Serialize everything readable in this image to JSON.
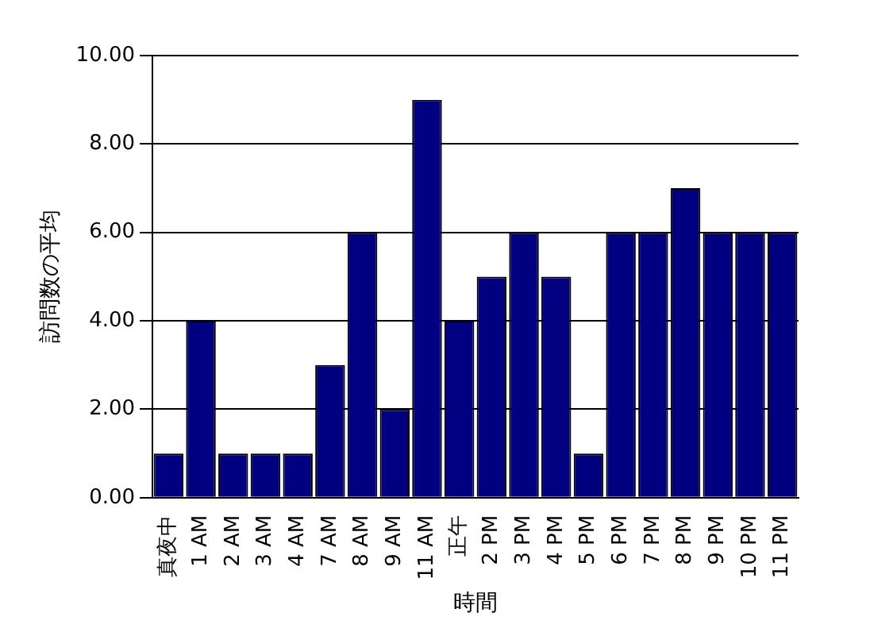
{
  "chart_data": {
    "type": "bar",
    "xlabel": "時間",
    "ylabel": "訪問数の平均",
    "categories": [
      "真夜中",
      "1 AM",
      "2 AM",
      "3 AM",
      "4 AM",
      "7 AM",
      "8 AM",
      "9 AM",
      "11 AM",
      "正午",
      "2 PM",
      "3 PM",
      "4 PM",
      "5 PM",
      "6 PM",
      "7 PM",
      "8 PM",
      "9 PM",
      "10 PM",
      "11 PM"
    ],
    "values": [
      1,
      4,
      1,
      1,
      1,
      3,
      6,
      2,
      9,
      4,
      5,
      6,
      5,
      1,
      6,
      6,
      7,
      6,
      6,
      6
    ],
    "color": "#000080",
    "ylim": [
      0,
      10
    ],
    "yticks": [
      {
        "value": 0,
        "label": "0.00"
      },
      {
        "value": 2,
        "label": "2.00"
      },
      {
        "value": 4,
        "label": "4.00"
      },
      {
        "value": 6,
        "label": "6.00"
      },
      {
        "value": 8,
        "label": "8.00"
      },
      {
        "value": 10,
        "label": "10.00"
      }
    ],
    "grid": "y"
  }
}
